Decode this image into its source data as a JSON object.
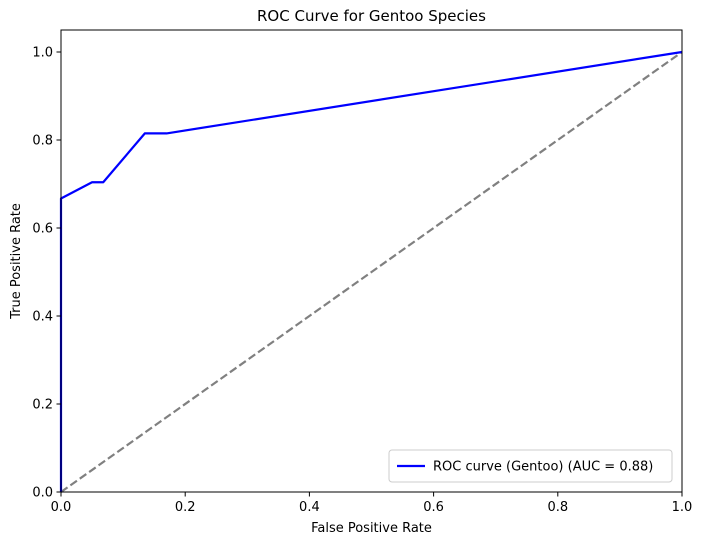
{
  "chart_data": {
    "type": "line",
    "title": "ROC Curve for Gentoo Species",
    "xlabel": "False Positive Rate",
    "ylabel": "True Positive Rate",
    "xlim": [
      0.0,
      1.0
    ],
    "ylim": [
      0.0,
      1.05
    ],
    "x_ticks": [
      "0.0",
      "0.2",
      "0.4",
      "0.6",
      "0.8",
      "1.0"
    ],
    "y_ticks": [
      "0.0",
      "0.2",
      "0.4",
      "0.6",
      "0.8",
      "1.0"
    ],
    "grid": false,
    "legend_position": "lower-right",
    "series": [
      {
        "name": "ROC curve (Gentoo) (AUC = 0.88)",
        "color": "#0000ff",
        "style": "solid",
        "x": [
          0.0,
          0.0,
          0.0,
          0.05,
          0.05,
          0.068,
          0.068,
          0.135,
          0.135,
          0.17,
          1.0
        ],
        "y": [
          0.0,
          0.0,
          0.667,
          0.704,
          0.704,
          0.704,
          0.704,
          0.815,
          0.815,
          0.815,
          1.0
        ]
      },
      {
        "name": "",
        "color": "#808080",
        "style": "dashed",
        "x": [
          0.0,
          1.0
        ],
        "y": [
          0.0,
          1.0
        ]
      }
    ]
  }
}
